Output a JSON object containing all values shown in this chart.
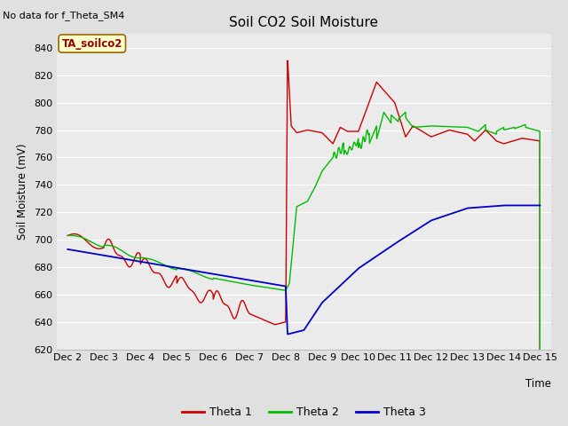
{
  "title": "Soil CO2 Soil Moisture",
  "no_data_text": "No data for f_Theta_SM4",
  "annotation_text": "TA_soilco2",
  "ylabel": "Soil Moisture (mV)",
  "xlabel": "Time",
  "ylim": [
    620,
    850
  ],
  "xlim_min": -0.3,
  "xlim_max": 13.3,
  "xtick_labels": [
    "Dec 2",
    "Dec 3",
    "Dec 4",
    "Dec 5",
    "Dec 6",
    "Dec 7",
    "Dec 8",
    "Dec 9",
    "Dec 10",
    "Dec 11",
    "Dec 12",
    "Dec 13",
    "Dec 14",
    "Dec 15"
  ],
  "ytick_values": [
    620,
    640,
    660,
    680,
    700,
    720,
    740,
    760,
    780,
    800,
    820,
    840
  ],
  "fig_bg_color": "#e0e0e0",
  "plot_bg_color": "#ebebeb",
  "grid_color": "#ffffff",
  "theta1_color": "#cc0000",
  "theta2_color": "#00bb00",
  "theta3_color": "#0000cc",
  "legend_entries": [
    "Theta 1",
    "Theta 2",
    "Theta 3"
  ],
  "annot_bg": "#ffffcc",
  "annot_edge": "#996600",
  "annot_text_color": "#990000"
}
